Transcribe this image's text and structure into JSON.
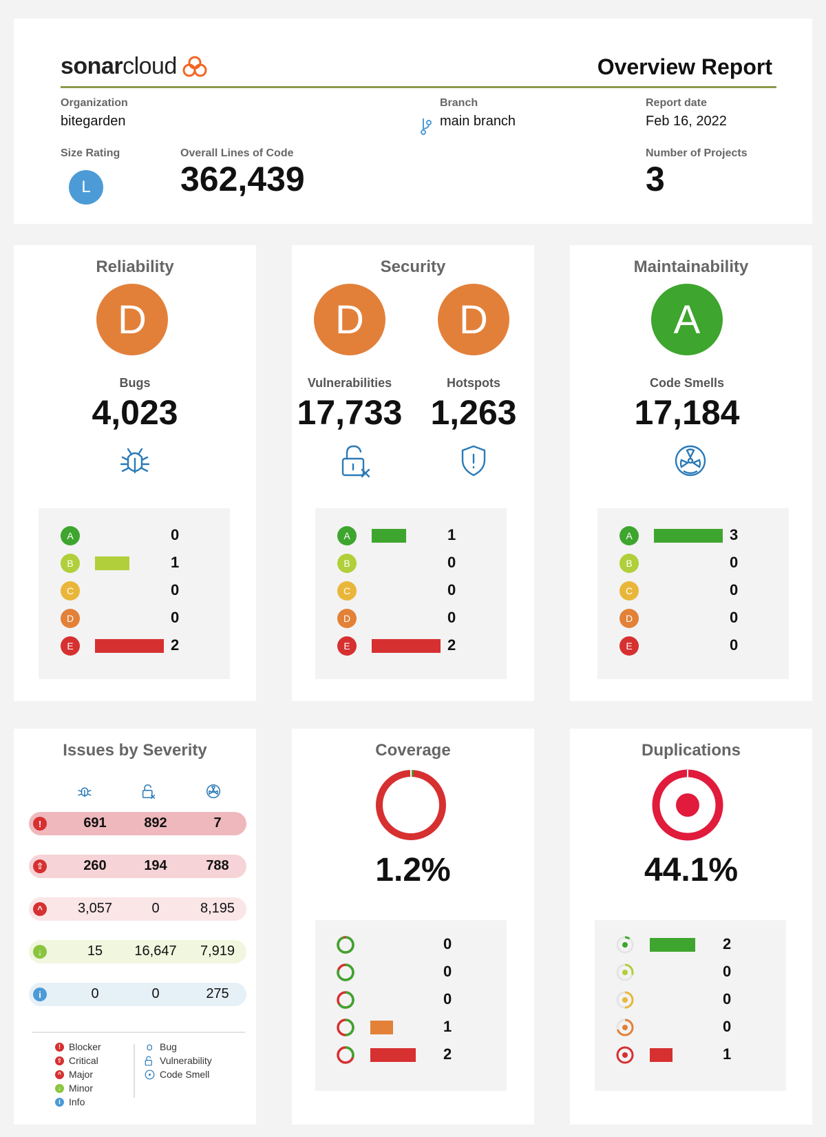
{
  "header": {
    "logo_prefix": "sonar",
    "logo_suffix": "cloud",
    "report_title": "Overview Report",
    "organization_label": "Organization",
    "organization_value": "bitegarden",
    "branch_label": "Branch",
    "branch_value": "main branch",
    "report_date_label": "Report date",
    "report_date_value": "Feb 16, 2022",
    "size_rating_label": "Size Rating",
    "size_rating_value": "L",
    "loc_label": "Overall Lines of Code",
    "loc_value": "362,439",
    "projects_label": "Number of Projects",
    "projects_value": "3"
  },
  "colors": {
    "A": "#3ea52e",
    "B": "#b0cf3a",
    "C": "#e9b63a",
    "D": "#e28137",
    "E": "#d63031",
    "grade_orange": "#e2803a",
    "grade_green": "#3ea52e",
    "accent_blue": "#4c9bd6"
  },
  "reliability": {
    "title": "Reliability",
    "grade": "D",
    "label": "Bugs",
    "value": "4,023",
    "icon": "bug-icon",
    "distribution": [
      {
        "grade": "A",
        "count": "0",
        "fraction": 0
      },
      {
        "grade": "B",
        "count": "1",
        "fraction": 0.5
      },
      {
        "grade": "C",
        "count": "0",
        "fraction": 0
      },
      {
        "grade": "D",
        "count": "0",
        "fraction": 0
      },
      {
        "grade": "E",
        "count": "2",
        "fraction": 1
      }
    ]
  },
  "security": {
    "title": "Security",
    "vuln_grade": "D",
    "hotspot_grade": "D",
    "vuln_label": "Vulnerabilities",
    "vuln_value": "17,733",
    "hotspot_label": "Hotspots",
    "hotspot_value": "1,263",
    "distribution": [
      {
        "grade": "A",
        "count": "1",
        "fraction": 0.5
      },
      {
        "grade": "B",
        "count": "0",
        "fraction": 0
      },
      {
        "grade": "C",
        "count": "0",
        "fraction": 0
      },
      {
        "grade": "D",
        "count": "0",
        "fraction": 0
      },
      {
        "grade": "E",
        "count": "2",
        "fraction": 1
      }
    ]
  },
  "maintainability": {
    "title": "Maintainability",
    "grade": "A",
    "label": "Code Smells",
    "value": "17,184",
    "distribution": [
      {
        "grade": "A",
        "count": "3",
        "fraction": 1
      },
      {
        "grade": "B",
        "count": "0",
        "fraction": 0
      },
      {
        "grade": "C",
        "count": "0",
        "fraction": 0
      },
      {
        "grade": "D",
        "count": "0",
        "fraction": 0
      },
      {
        "grade": "E",
        "count": "0",
        "fraction": 0
      }
    ]
  },
  "severity": {
    "title": "Issues by Severity",
    "rows": [
      {
        "severity": "blocker",
        "bug": "691",
        "vulnerability": "892",
        "code_smell": "7",
        "bg": "#efb8bd",
        "bold": true,
        "icon_color": "#d63031",
        "icon_glyph": "!"
      },
      {
        "severity": "critical",
        "bug": "260",
        "vulnerability": "194",
        "code_smell": "788",
        "bg": "#f6d3d6",
        "bold": true,
        "icon_color": "#d63031",
        "icon_glyph": "⇧"
      },
      {
        "severity": "major",
        "bug": "3,057",
        "vulnerability": "0",
        "code_smell": "8,195",
        "bg": "#fae5e7",
        "bold": false,
        "icon_color": "#d63031",
        "icon_glyph": "^"
      },
      {
        "severity": "minor",
        "bug": "15",
        "vulnerability": "16,647",
        "code_smell": "7,919",
        "bg": "#f1f6df",
        "bold": false,
        "icon_color": "#8bc53f",
        "icon_glyph": "↓"
      },
      {
        "severity": "info",
        "bug": "0",
        "vulnerability": "0",
        "code_smell": "275",
        "bg": "#e6f0f7",
        "bold": false,
        "icon_color": "#4c9bd6",
        "icon_glyph": "i"
      }
    ],
    "legend_severity": [
      "Blocker",
      "Critical",
      "Major",
      "Minor",
      "Info"
    ],
    "legend_types": [
      "Bug",
      "Vulnerability",
      "Code Smell"
    ]
  },
  "coverage": {
    "title": "Coverage",
    "value": "1.2%",
    "fraction": 0.012,
    "distribution": [
      {
        "count": "0",
        "fraction": 0,
        "bar_color": "#3ea52e",
        "ring_green": 0.95
      },
      {
        "count": "0",
        "fraction": 0,
        "bar_color": "#b0cf3a",
        "ring_green": 0.8
      },
      {
        "count": "0",
        "fraction": 0,
        "bar_color": "#e9b63a",
        "ring_green": 0.65
      },
      {
        "count": "1",
        "fraction": 0.5,
        "bar_color": "#e28137",
        "ring_green": 0.5
      },
      {
        "count": "2",
        "fraction": 1,
        "bar_color": "#d63031",
        "ring_green": 0.3
      }
    ]
  },
  "duplications": {
    "title": "Duplications",
    "value": "44.1%",
    "distribution": [
      {
        "count": "2",
        "fraction": 1,
        "bar_color": "#3ea52e",
        "ring_color": "#3ea52e",
        "ring_fill": 0.1
      },
      {
        "count": "0",
        "fraction": 0,
        "bar_color": "#b0cf3a",
        "ring_color": "#b0cf3a",
        "ring_fill": 0.3
      },
      {
        "count": "0",
        "fraction": 0,
        "bar_color": "#e9b63a",
        "ring_color": "#e9b63a",
        "ring_fill": 0.5
      },
      {
        "count": "0",
        "fraction": 0,
        "bar_color": "#e28137",
        "ring_color": "#e28137",
        "ring_fill": 0.7
      },
      {
        "count": "1",
        "fraction": 0.5,
        "bar_color": "#d63031",
        "ring_color": "#d63031",
        "ring_fill": 1
      }
    ]
  }
}
